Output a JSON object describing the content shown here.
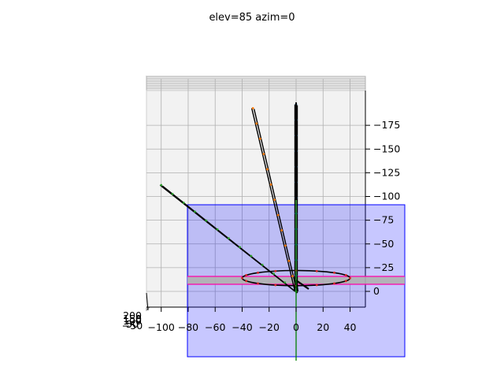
{
  "chart_data": {
    "type": "line",
    "title": "elev=85 azim=0",
    "view": {
      "elev": 85,
      "azim": 0
    },
    "x_ticks": [
      "−100",
      "−80",
      "−60",
      "−40",
      "−20",
      "0",
      "20",
      "40"
    ],
    "y_ticks": [
      "175",
      "150",
      "125",
      "100",
      "75",
      "50",
      "25",
      "0"
    ],
    "z_ticks": [
      "200",
      "150",
      "100",
      "50",
      "0",
      "−50"
    ],
    "xlim": [
      -110,
      50
    ],
    "ylim": [
      -10,
      200
    ],
    "grid": true,
    "colors": {
      "pane_back": "#f2f2f2",
      "pane_side": "#e6e6e6",
      "grid": "#b0b0b0",
      "blue_plane": "#0000ff",
      "pink_edge": "#ff00aa",
      "gray_band": "#b0b0b0",
      "line": "#000000",
      "dots_blue": "#1f77b4",
      "dots_orange": "#ff7f0e",
      "dots_green": "#2ca02c",
      "dots_red": "#d62728",
      "vertical_axis": "#008000"
    },
    "series": [
      {
        "kind": "line",
        "x": [
          0,
          0
        ],
        "y": [
          0,
          197
        ],
        "dots": "dots_blue"
      },
      {
        "kind": "line",
        "x": [
          0,
          -32
        ],
        "y": [
          0,
          193
        ],
        "dots": "dots_orange"
      },
      {
        "kind": "line",
        "x": [
          0,
          -100
        ],
        "y": [
          0,
          112
        ],
        "dots": "dots_green"
      },
      {
        "kind": "ellipse",
        "cx": 0,
        "cy": 14,
        "rx": 40,
        "ry": 8,
        "dots": "dots_red"
      }
    ],
    "planes": [
      {
        "kind": "rect",
        "x": [
          -80,
          80
        ],
        "y": [
          -78,
          90
        ],
        "fill": "blue_plane",
        "opacity": 0.22
      },
      {
        "kind": "rect",
        "x": [
          -80,
          80
        ],
        "y": [
          -1,
          8
        ],
        "fill": "gray_band",
        "opacity": 0.9,
        "edge": "pink_edge"
      }
    ]
  }
}
